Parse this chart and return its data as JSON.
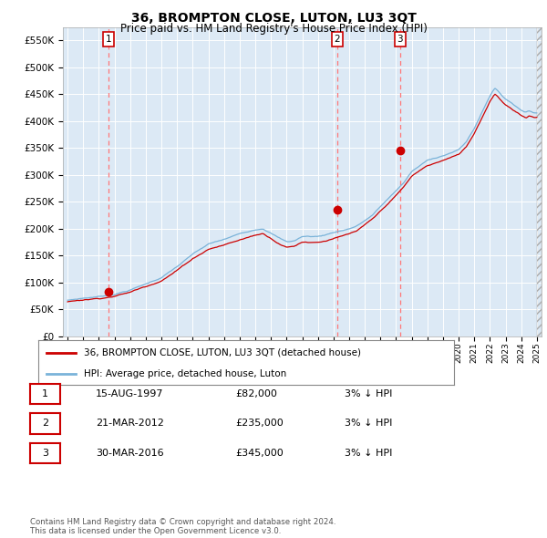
{
  "title": "36, BROMPTON CLOSE, LUTON, LU3 3QT",
  "subtitle": "Price paid vs. HM Land Registry's House Price Index (HPI)",
  "plot_background": "#dce9f5",
  "ylim": [
    0,
    575000
  ],
  "yticks": [
    0,
    50000,
    100000,
    150000,
    200000,
    250000,
    300000,
    350000,
    400000,
    450000,
    500000,
    550000
  ],
  "ytick_labels": [
    "£0",
    "£50K",
    "£100K",
    "£150K",
    "£200K",
    "£250K",
    "£300K",
    "£350K",
    "£400K",
    "£450K",
    "£500K",
    "£550K"
  ],
  "x_start_year": 1995,
  "x_end_year": 2025,
  "sales": [
    {
      "year": 1997.62,
      "price": 82000,
      "label": "1"
    },
    {
      "year": 2012.22,
      "price": 235000,
      "label": "2"
    },
    {
      "year": 2016.25,
      "price": 345000,
      "label": "3"
    }
  ],
  "hpi_color": "#7ab3d9",
  "property_color": "#cc0000",
  "vline_color": "#ff7777",
  "grid_color": "#ffffff",
  "legend_entries": [
    "36, BROMPTON CLOSE, LUTON, LU3 3QT (detached house)",
    "HPI: Average price, detached house, Luton"
  ],
  "table_entries": [
    {
      "num": "1",
      "date": "15-AUG-1997",
      "price": "£82,000",
      "hpi": "3% ↓ HPI"
    },
    {
      "num": "2",
      "date": "21-MAR-2012",
      "price": "£235,000",
      "hpi": "3% ↓ HPI"
    },
    {
      "num": "3",
      "date": "30-MAR-2016",
      "price": "£345,000",
      "hpi": "3% ↓ HPI"
    }
  ],
  "footnote": "Contains HM Land Registry data © Crown copyright and database right 2024.\nThis data is licensed under the Open Government Licence v3.0."
}
